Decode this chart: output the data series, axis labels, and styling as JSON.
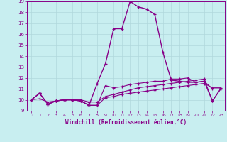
{
  "xlabel": "Windchill (Refroidissement éolien,°C)",
  "xlim": [
    -0.5,
    23.5
  ],
  "ylim": [
    9,
    19
  ],
  "xticks": [
    0,
    1,
    2,
    3,
    4,
    5,
    6,
    7,
    8,
    9,
    10,
    11,
    12,
    13,
    14,
    15,
    16,
    17,
    18,
    19,
    20,
    21,
    22,
    23
  ],
  "yticks": [
    9,
    10,
    11,
    12,
    13,
    14,
    15,
    16,
    17,
    18,
    19
  ],
  "background_color": "#c8eef0",
  "grid_color": "#b0d8dc",
  "line_color": "#880088",
  "series": [
    [
      10.0,
      10.6,
      9.6,
      9.9,
      10.0,
      10.0,
      9.9,
      9.5,
      9.5,
      10.2,
      10.3,
      10.5,
      10.6,
      10.7,
      10.8,
      10.9,
      11.0,
      11.1,
      11.2,
      11.3,
      11.4,
      11.5,
      11.1,
      11.1
    ],
    [
      10.0,
      10.1,
      9.8,
      9.9,
      10.0,
      10.0,
      10.0,
      9.8,
      9.8,
      10.3,
      10.5,
      10.7,
      10.9,
      11.1,
      11.2,
      11.3,
      11.4,
      11.5,
      11.6,
      11.7,
      11.8,
      11.9,
      9.9,
      11.0
    ],
    [
      10.0,
      10.6,
      9.6,
      9.9,
      10.0,
      10.0,
      9.9,
      9.5,
      9.5,
      11.3,
      11.1,
      11.2,
      11.4,
      11.5,
      11.6,
      11.7,
      11.7,
      11.9,
      11.9,
      12.0,
      11.6,
      11.7,
      11.0,
      11.0
    ],
    [
      10.0,
      10.6,
      9.6,
      9.9,
      10.0,
      10.0,
      9.9,
      9.5,
      11.5,
      13.3,
      16.5,
      16.5,
      19.0,
      18.5,
      18.3,
      17.8,
      14.3,
      11.8,
      11.7,
      11.6,
      11.6,
      11.7,
      9.9,
      11.0
    ]
  ]
}
